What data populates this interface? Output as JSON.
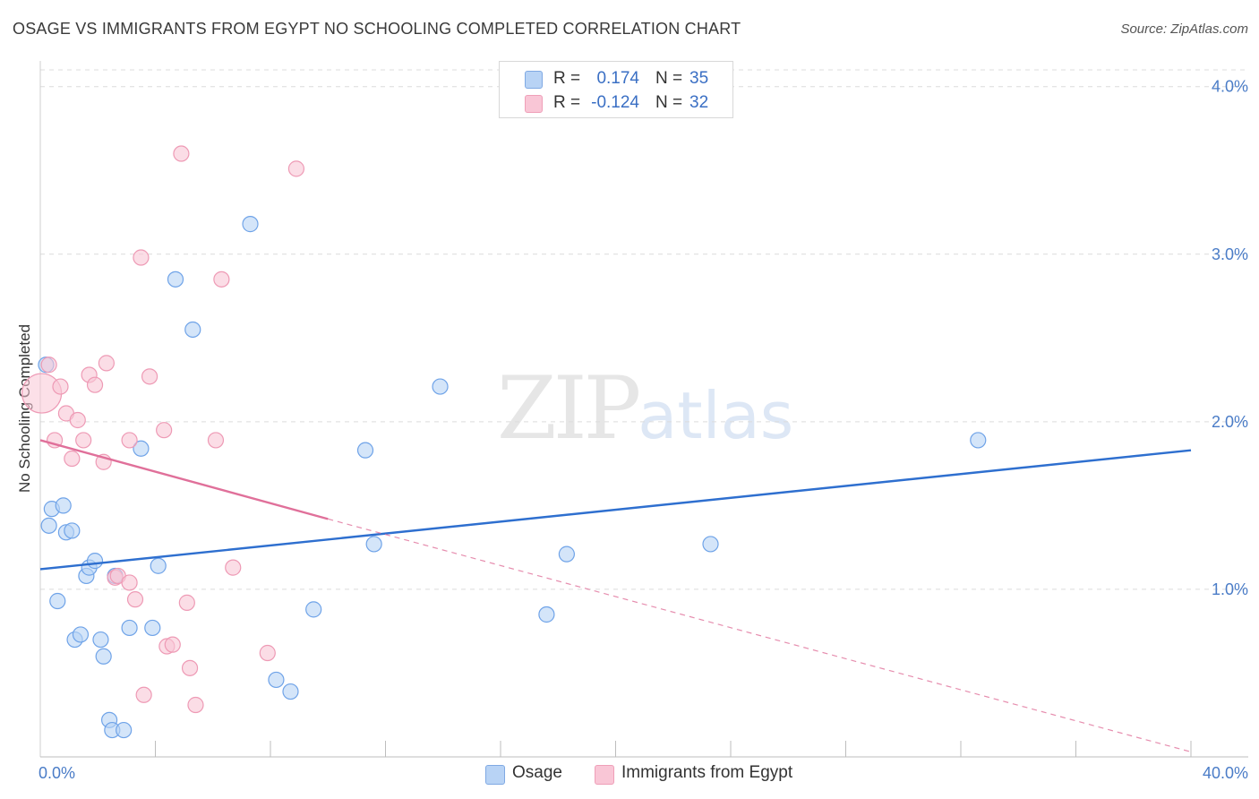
{
  "header": {
    "title": "OSAGE VS IMMIGRANTS FROM EGYPT NO SCHOOLING COMPLETED CORRELATION CHART",
    "source": "Source: ZipAtlas.com"
  },
  "watermark": {
    "zip": "ZIP",
    "atlas": "atlas"
  },
  "legend_top": {
    "rows": [
      {
        "r_label": "R =",
        "r_value": "0.174",
        "n_label": "N =",
        "n_value": "35",
        "color": "#b8d3f5"
      },
      {
        "r_label": "R =",
        "r_value": "-0.124",
        "n_label": "N =",
        "n_value": "32",
        "color": "#f9c6d6"
      }
    ]
  },
  "legend_bottom": {
    "items": [
      {
        "label": "Osage",
        "color": "#b8d3f5"
      },
      {
        "label": "Immigrants from Egypt",
        "color": "#f9c6d6"
      }
    ]
  },
  "chart_data": {
    "type": "scatter",
    "title": "OSAGE VS IMMIGRANTS FROM EGYPT NO SCHOOLING COMPLETED CORRELATION CHART",
    "xlabel": "",
    "ylabel": "No Schooling Completed",
    "xlim": [
      0,
      40
    ],
    "ylim": [
      0,
      4.1
    ],
    "x_tick_labels": [
      "0.0%",
      "40.0%"
    ],
    "y_ticks": [
      1.0,
      2.0,
      3.0,
      4.0
    ],
    "y_tick_labels": [
      "1.0%",
      "2.0%",
      "3.0%",
      "4.0%"
    ],
    "grid": true,
    "series": [
      {
        "name": "Osage",
        "color": "#6fa3e8",
        "fill": "#b8d3f5",
        "trend": {
          "x": [
            0,
            40
          ],
          "y": [
            1.12,
            1.83
          ],
          "style": "solid",
          "color": "#2e6fcf"
        },
        "points": [
          [
            0.2,
            2.34
          ],
          [
            0.3,
            1.38
          ],
          [
            0.4,
            1.48
          ],
          [
            0.6,
            0.93
          ],
          [
            0.8,
            1.5
          ],
          [
            0.9,
            1.34
          ],
          [
            1.1,
            1.35
          ],
          [
            1.2,
            0.7
          ],
          [
            1.4,
            0.73
          ],
          [
            1.6,
            1.08
          ],
          [
            1.7,
            1.13
          ],
          [
            1.9,
            1.17
          ],
          [
            2.1,
            0.7
          ],
          [
            2.2,
            0.6
          ],
          [
            2.4,
            0.22
          ],
          [
            2.5,
            0.16
          ],
          [
            2.6,
            1.08
          ],
          [
            2.9,
            0.16
          ],
          [
            3.1,
            0.77
          ],
          [
            3.5,
            1.84
          ],
          [
            3.9,
            0.77
          ],
          [
            4.1,
            1.14
          ],
          [
            4.7,
            2.85
          ],
          [
            5.3,
            2.55
          ],
          [
            7.3,
            3.18
          ],
          [
            8.2,
            0.46
          ],
          [
            8.7,
            0.39
          ],
          [
            9.5,
            0.88
          ],
          [
            11.3,
            1.83
          ],
          [
            11.6,
            1.27
          ],
          [
            13.9,
            2.21
          ],
          [
            17.6,
            0.85
          ],
          [
            18.3,
            1.21
          ],
          [
            23.3,
            1.27
          ],
          [
            32.6,
            1.89
          ]
        ]
      },
      {
        "name": "Immigrants from Egypt",
        "color": "#ee9ab5",
        "fill": "#f9c6d6",
        "trend": {
          "x": [
            0,
            10
          ],
          "y": [
            1.89,
            1.42
          ],
          "style": "solid",
          "color": "#e0709a",
          "extension": {
            "x": [
              10,
              40
            ],
            "y": [
              1.42,
              0.03
            ],
            "style": "dashed"
          }
        },
        "points": [
          [
            0.05,
            2.17
          ],
          [
            0.3,
            2.34
          ],
          [
            0.5,
            1.89
          ],
          [
            0.7,
            2.21
          ],
          [
            0.9,
            2.05
          ],
          [
            1.1,
            1.78
          ],
          [
            1.3,
            2.01
          ],
          [
            1.5,
            1.89
          ],
          [
            1.7,
            2.28
          ],
          [
            1.9,
            2.22
          ],
          [
            2.2,
            1.76
          ],
          [
            2.3,
            2.35
          ],
          [
            2.6,
            1.07
          ],
          [
            2.7,
            1.08
          ],
          [
            3.1,
            1.89
          ],
          [
            3.1,
            1.04
          ],
          [
            3.3,
            0.94
          ],
          [
            3.5,
            2.98
          ],
          [
            3.6,
            0.37
          ],
          [
            3.8,
            2.27
          ],
          [
            4.3,
            1.95
          ],
          [
            4.4,
            0.66
          ],
          [
            4.6,
            0.67
          ],
          [
            4.9,
            3.6
          ],
          [
            5.1,
            0.92
          ],
          [
            5.2,
            0.53
          ],
          [
            5.4,
            0.31
          ],
          [
            6.1,
            1.89
          ],
          [
            6.3,
            2.85
          ],
          [
            6.7,
            1.13
          ],
          [
            7.9,
            0.62
          ],
          [
            8.9,
            3.51
          ]
        ]
      }
    ]
  }
}
